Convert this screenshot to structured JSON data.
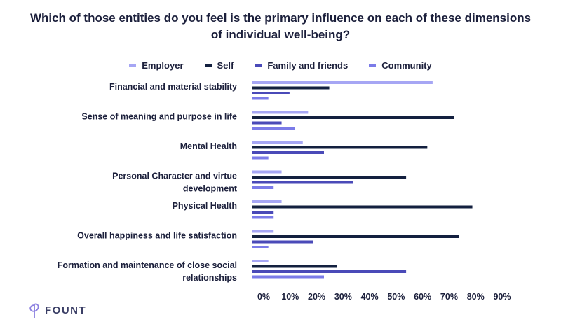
{
  "chart_data": {
    "type": "bar",
    "orientation": "horizontal",
    "title": "Which of those entities do you feel is the primary influence on each of these dimensions of individual well-being?",
    "categories": [
      [
        "Financial and material stability"
      ],
      [
        "Sense of meaning and purpose in life"
      ],
      [
        "Mental Health"
      ],
      [
        "Personal Character and virtue",
        "development"
      ],
      [
        "Physical Health"
      ],
      [
        "Overall happiness and life satisfaction"
      ],
      [
        "Formation and maintenance of close social",
        "relationships"
      ]
    ],
    "series": [
      {
        "name": "Employer",
        "color": "#a6a6f4",
        "values": [
          68,
          21,
          19,
          11,
          11,
          8,
          6
        ]
      },
      {
        "name": "Self",
        "color": "#13203f",
        "values": [
          29,
          76,
          66,
          58,
          83,
          78,
          32
        ]
      },
      {
        "name": "Family and friends",
        "color": "#4a4ab8",
        "values": [
          14,
          11,
          27,
          38,
          8,
          23,
          58
        ]
      },
      {
        "name": "Community",
        "color": "#7b7be8",
        "values": [
          6,
          16,
          6,
          8,
          8,
          6,
          27
        ]
      }
    ],
    "x_ticks": [
      "0%",
      "10%",
      "20%",
      "30%",
      "40%",
      "50%",
      "60%",
      "70%",
      "80%",
      "90%"
    ],
    "xlim": [
      0,
      90
    ],
    "legend_position": "top",
    "grid": false
  },
  "brand": {
    "logo_text": "FOUNT",
    "logo_color": "#8b7fe0"
  }
}
